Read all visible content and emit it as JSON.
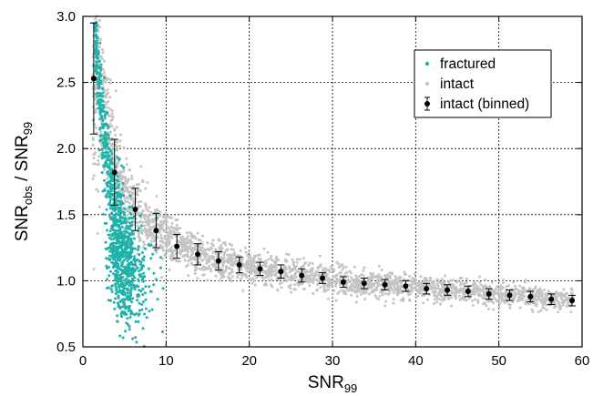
{
  "chart_data": {
    "type": "scatter",
    "title": "",
    "xlabel": {
      "main": "SNR",
      "sub": "99"
    },
    "ylabel": {
      "parts": [
        {
          "text": "SNR",
          "sub": false
        },
        {
          "text": "obs",
          "sub": true
        },
        {
          "text": " / SNR",
          "sub": false
        },
        {
          "text": "99",
          "sub": true
        }
      ]
    },
    "xlim": [
      0,
      60
    ],
    "ylim": [
      0.5,
      3.0
    ],
    "xticks": [
      0,
      10,
      20,
      30,
      40,
      50,
      60
    ],
    "yticks": [
      0.5,
      1.0,
      1.5,
      2.0,
      2.5,
      3.0
    ],
    "ytick_labels": [
      "0.5",
      "1.0",
      "1.5",
      "2.0",
      "2.5",
      "3.0"
    ],
    "grid": true,
    "legend_position": "top-right",
    "colors": {
      "fractured": "#20b2aa",
      "intact": "#c4c4c4",
      "binned": "#000000"
    },
    "series": [
      {
        "name": "fractured",
        "kind": "scatter-cloud",
        "description_points": "dense cloud spanning SNR99 ~1.5-9.5, ratio ~0.55-3.0; upper branch follows ~3.6/x^0.6 curve, lower lobe concentrated at x 4-9, y 0.6-1.3"
      },
      {
        "name": "intact",
        "kind": "scatter-cloud",
        "trend": "follows binned curve with spread decreasing from ~0.4 at x=5 to ~0.05 at x=59"
      },
      {
        "name": "intact (binned)",
        "kind": "errorbar",
        "x": [
          1.3,
          3.8,
          6.3,
          8.8,
          11.3,
          13.8,
          16.3,
          18.8,
          21.3,
          23.8,
          26.3,
          28.8,
          31.3,
          33.8,
          36.3,
          38.8,
          41.3,
          43.8,
          46.3,
          48.8,
          51.3,
          53.8,
          56.3,
          58.8
        ],
        "y": [
          2.53,
          1.82,
          1.54,
          1.38,
          1.26,
          1.2,
          1.15,
          1.12,
          1.09,
          1.07,
          1.04,
          1.02,
          0.99,
          0.98,
          0.97,
          0.96,
          0.94,
          0.93,
          0.92,
          0.9,
          0.89,
          0.88,
          0.86,
          0.85
        ],
        "err": [
          0.42,
          0.25,
          0.16,
          0.13,
          0.09,
          0.08,
          0.07,
          0.06,
          0.05,
          0.05,
          0.05,
          0.04,
          0.04,
          0.04,
          0.04,
          0.04,
          0.04,
          0.04,
          0.04,
          0.04,
          0.04,
          0.04,
          0.04,
          0.04
        ]
      }
    ],
    "legend": [
      {
        "label": "fractured",
        "marker": "dot-fractured"
      },
      {
        "label": "intact",
        "marker": "dot-intact"
      },
      {
        "label": "intact (binned)",
        "marker": "errorbar"
      }
    ]
  }
}
